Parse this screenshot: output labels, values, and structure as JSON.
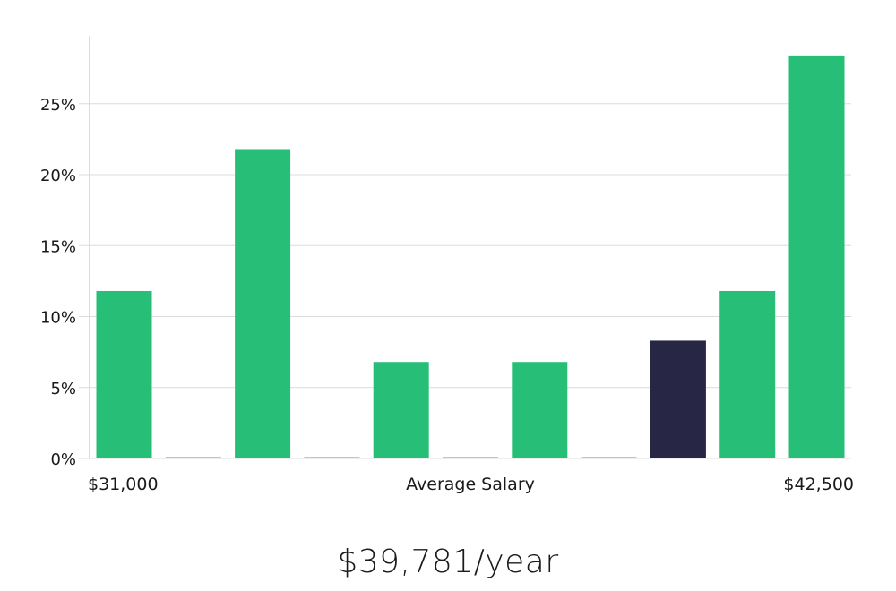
{
  "chart_data": {
    "type": "bar",
    "xlabel": "Average Salary",
    "x_range_labels": [
      "$31,000",
      "$42,500"
    ],
    "yticks": [
      "0%",
      "5%",
      "10%",
      "15%",
      "20%",
      "25%"
    ],
    "ylim": [
      0,
      29.8
    ],
    "values": [
      11.8,
      0,
      21.8,
      0,
      6.8,
      0,
      6.8,
      0,
      8.3,
      11.8,
      28.4
    ],
    "highlight_index": 8,
    "colors": {
      "bar": "#27bf78",
      "highlight": "#272645"
    },
    "grid": true
  },
  "salary_text": "$39,781/year"
}
